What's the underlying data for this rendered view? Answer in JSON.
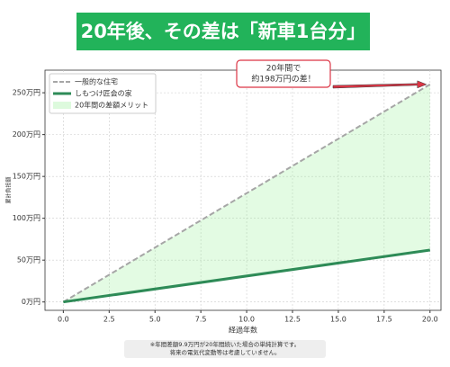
{
  "banner": "20年後、その差は「新車1台分」",
  "chart_data": {
    "type": "line",
    "x_label": "経過年数",
    "y_label": "累計負担額",
    "x": [
      0,
      20
    ],
    "series": [
      {
        "name": "一般的な住宅",
        "color": "#a6a6a6",
        "dash": true,
        "values": [
          0,
          260
        ]
      },
      {
        "name": "しもつけ匠会の家",
        "color": "#2e8b57",
        "dash": false,
        "values": [
          0,
          62
        ]
      }
    ],
    "fill": {
      "name": "20年間の差額メリット",
      "color": "#90ee90"
    },
    "xlim": [
      -1,
      20.6
    ],
    "ylim": [
      -10,
      277
    ],
    "xticks": [
      {
        "value": 0,
        "label": "0.0"
      },
      2.5,
      {
        "value": 5,
        "label": "5.0"
      },
      7.5,
      {
        "value": 10,
        "label": "10.0"
      },
      12.5,
      {
        "value": 15,
        "label": "15.0"
      },
      17.5,
      {
        "value": 20,
        "label": "20.0"
      }
    ],
    "yticks": [
      {
        "value": 0,
        "label": "0万円"
      },
      {
        "value": 50,
        "label": "50万円"
      },
      {
        "value": 100,
        "label": "100万円"
      },
      {
        "value": 150,
        "label": "150万円"
      },
      {
        "value": 200,
        "label": "200万円"
      },
      {
        "value": 250,
        "label": "250万円"
      }
    ],
    "grid": true,
    "legend": "upper left",
    "annotation": {
      "lines": [
        "20年間で",
        "約198万円の差！"
      ],
      "color": "#dc3545"
    }
  },
  "footnote": [
    "※年間差額9.9万円が20年間続いた場合の単純計算です。",
    "将来の電気代変動等は考慮していません。"
  ]
}
